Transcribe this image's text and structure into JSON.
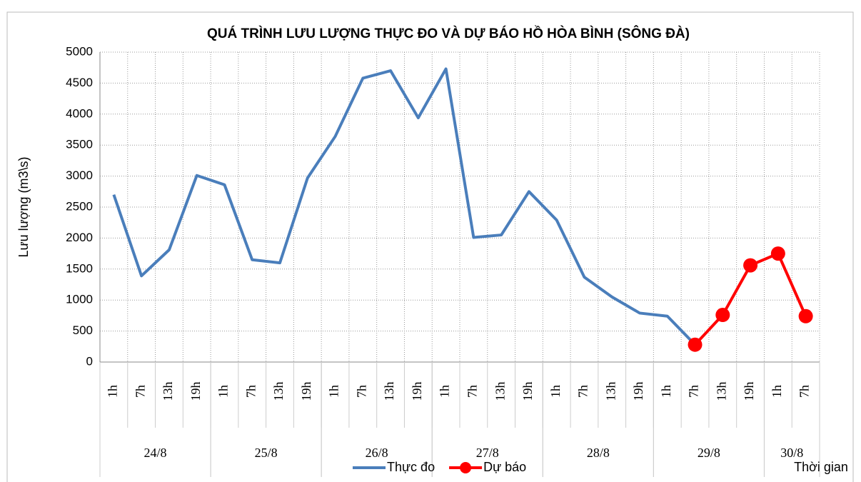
{
  "chart_data": {
    "type": "line",
    "title": "QUÁ TRÌNH LƯU LƯỢNG THỰC ĐO VÀ DỰ BÁO HỒ HÒA BÌNH (SÔNG ĐÀ)",
    "y_label": "Lưu lượng (m3\\s)",
    "x_label": "Thời gian",
    "categories": [
      "1h",
      "7h",
      "13h",
      "19h",
      "1h",
      "7h",
      "13h",
      "19h",
      "1h",
      "7h",
      "13h",
      "19h",
      "1h",
      "7h",
      "13h",
      "19h",
      "1h",
      "7h",
      "13h",
      "19h",
      "1h",
      "7h",
      "13h",
      "19h",
      "1h",
      "7h"
    ],
    "groups": [
      {
        "label": "24/8",
        "span": 4
      },
      {
        "label": "25/8",
        "span": 4
      },
      {
        "label": "26/8",
        "span": 4
      },
      {
        "label": "27/8",
        "span": 4
      },
      {
        "label": "28/8",
        "span": 4
      },
      {
        "label": "29/8",
        "span": 4
      },
      {
        "label": "30/8",
        "span": 2
      }
    ],
    "series": [
      {
        "name": "Thực đo",
        "color": "#4a7ebb",
        "markers": false,
        "values": [
          2700,
          1390,
          1810,
          3010,
          2860,
          1650,
          1600,
          2970,
          3640,
          4580,
          4700,
          3940,
          4730,
          2010,
          2050,
          2750,
          2290,
          1370,
          1050,
          790,
          740,
          280,
          null,
          null,
          null,
          null
        ]
      },
      {
        "name": "Dự báo",
        "color": "#ff0000",
        "markers": true,
        "values": [
          null,
          null,
          null,
          null,
          null,
          null,
          null,
          null,
          null,
          null,
          null,
          null,
          null,
          null,
          null,
          null,
          null,
          null,
          null,
          null,
          null,
          280,
          760,
          1560,
          1750,
          740
        ]
      }
    ],
    "ylim": [
      0,
      5000
    ],
    "yticks": [
      0,
      500,
      1000,
      1500,
      2000,
      2500,
      3000,
      3500,
      4000,
      4500,
      5000
    ],
    "grid": true,
    "legend": "bottom"
  }
}
